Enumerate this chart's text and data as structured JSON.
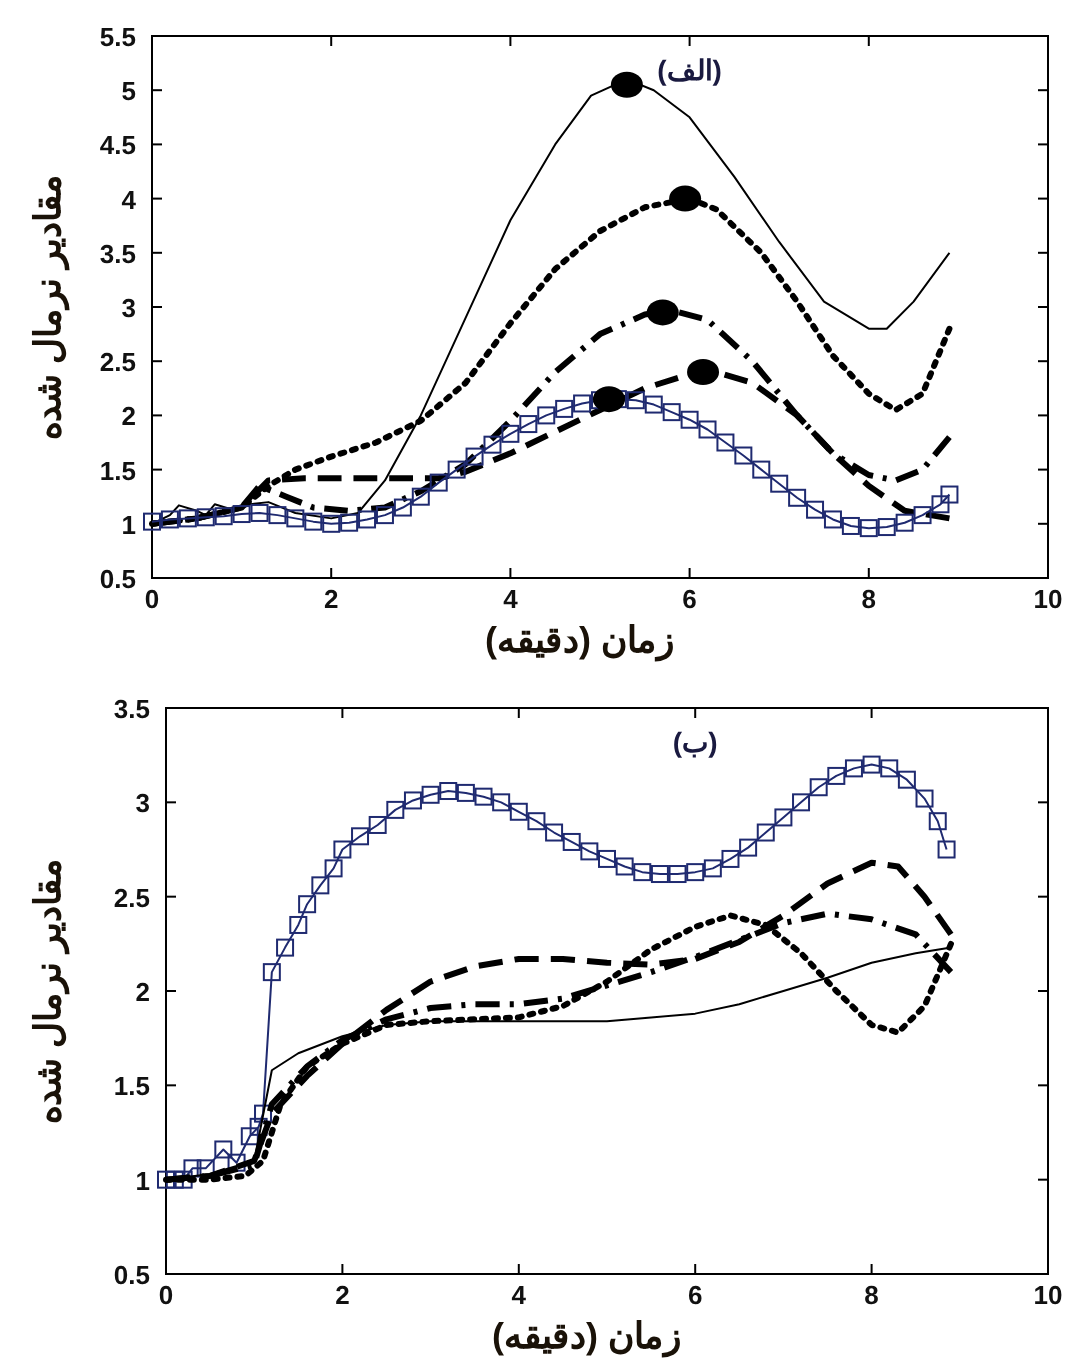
{
  "chart_data": [
    {
      "type": "line",
      "title": "(الف)",
      "xlabel": "زمان (دقیقه)",
      "ylabel": "مقادیر نرمال شده",
      "xlim": [
        0,
        10
      ],
      "ylim": [
        0.5,
        5.5
      ],
      "xticks": [
        0,
        2,
        4,
        6,
        8,
        10
      ],
      "yticks": [
        0.5,
        1,
        1.5,
        2,
        2.5,
        3,
        3.5,
        4,
        4.5,
        5,
        5.5
      ],
      "grid": false,
      "series": [
        {
          "color": "#000000",
          "line_style": "solid",
          "marker": "none",
          "x": [
            0,
            0.2,
            0.3,
            0.5,
            0.6,
            0.7,
            0.9,
            1.1,
            1.3,
            1.6,
            2.0,
            2.3,
            2.6,
            3.0,
            3.5,
            4.0,
            4.5,
            4.9,
            5.3,
            5.6,
            6.0,
            6.5,
            7.0,
            7.5,
            8.0,
            8.2,
            8.5,
            8.9
          ],
          "values": [
            1.0,
            1.08,
            1.17,
            1.12,
            1.08,
            1.18,
            1.13,
            1.18,
            1.2,
            1.1,
            1.05,
            1.1,
            1.4,
            2.0,
            2.9,
            3.8,
            4.5,
            4.95,
            5.1,
            5.0,
            4.75,
            4.2,
            3.6,
            3.05,
            2.8,
            2.8,
            3.05,
            3.5
          ]
        },
        {
          "color": "#000000",
          "line_style": "dotted",
          "marker": "none",
          "x": [
            0,
            0.5,
            1.0,
            1.3,
            1.6,
            2.0,
            2.5,
            3.0,
            3.5,
            4.0,
            4.5,
            5.0,
            5.5,
            6.0,
            6.3,
            6.8,
            7.2,
            7.6,
            8.0,
            8.3,
            8.6,
            8.9
          ],
          "values": [
            1.0,
            1.05,
            1.15,
            1.35,
            1.5,
            1.62,
            1.75,
            1.95,
            2.3,
            2.85,
            3.35,
            3.7,
            3.92,
            4.0,
            3.9,
            3.5,
            3.05,
            2.55,
            2.2,
            2.05,
            2.2,
            2.8
          ]
        },
        {
          "color": "#000000",
          "line_style": "dashdot",
          "marker": "none",
          "x": [
            0,
            0.5,
            1.0,
            1.2,
            1.5,
            1.8,
            2.2,
            2.6,
            3.0,
            3.5,
            4.0,
            4.5,
            5.0,
            5.5,
            5.8,
            6.2,
            6.7,
            7.2,
            7.6,
            8.0,
            8.3,
            8.6,
            8.9
          ],
          "values": [
            1.0,
            1.05,
            1.15,
            1.35,
            1.25,
            1.15,
            1.12,
            1.15,
            1.3,
            1.55,
            1.95,
            2.4,
            2.75,
            2.93,
            2.97,
            2.88,
            2.5,
            2.0,
            1.65,
            1.45,
            1.4,
            1.5,
            1.8
          ]
        },
        {
          "color": "#000000",
          "line_style": "dashed",
          "marker": "none",
          "x": [
            0,
            0.5,
            1.0,
            1.3,
            1.7,
            2.5,
            3.2,
            3.5,
            4.0,
            4.5,
            5.0,
            5.5,
            6.0,
            6.3,
            6.7,
            7.2,
            7.6,
            8.0,
            8.4,
            8.9
          ],
          "values": [
            1.0,
            1.05,
            1.15,
            1.4,
            1.42,
            1.42,
            1.42,
            1.48,
            1.65,
            1.85,
            2.05,
            2.25,
            2.38,
            2.4,
            2.3,
            2.0,
            1.65,
            1.35,
            1.12,
            1.05
          ]
        },
        {
          "color": "#1f2a70",
          "line_style": "solid",
          "marker": "square",
          "x": [
            0,
            0.2,
            0.4,
            0.6,
            0.8,
            1.0,
            1.2,
            1.4,
            1.6,
            1.8,
            2.0,
            2.2,
            2.4,
            2.6,
            2.8,
            3.0,
            3.2,
            3.4,
            3.6,
            3.8,
            4.0,
            4.2,
            4.4,
            4.6,
            4.8,
            5.0,
            5.2,
            5.4,
            5.6,
            5.8,
            6.0,
            6.2,
            6.4,
            6.6,
            6.8,
            7.0,
            7.2,
            7.4,
            7.6,
            7.8,
            8.0,
            8.2,
            8.4,
            8.6,
            8.8,
            8.9
          ],
          "values": [
            1.02,
            1.04,
            1.05,
            1.06,
            1.07,
            1.09,
            1.1,
            1.08,
            1.05,
            1.02,
            1.0,
            1.01,
            1.04,
            1.08,
            1.15,
            1.25,
            1.38,
            1.5,
            1.62,
            1.73,
            1.83,
            1.92,
            2.0,
            2.06,
            2.11,
            2.14,
            2.15,
            2.14,
            2.1,
            2.03,
            1.96,
            1.87,
            1.75,
            1.63,
            1.5,
            1.37,
            1.24,
            1.13,
            1.04,
            0.98,
            0.96,
            0.97,
            1.01,
            1.08,
            1.18,
            1.27
          ]
        },
        {
          "type": "scatter",
          "color": "#000000",
          "marker": "circle",
          "x": [
            5.3,
            5.95,
            5.7,
            6.15,
            5.1
          ],
          "values": [
            5.05,
            4.0,
            2.95,
            2.4,
            2.15
          ]
        }
      ]
    },
    {
      "type": "line",
      "title": "(ب)",
      "xlabel": "زمان (دقیقه)",
      "ylabel": "مقادیر نرمال شده",
      "xlim": [
        0,
        10
      ],
      "ylim": [
        0.5,
        3.5
      ],
      "xticks": [
        0,
        2,
        4,
        6,
        8,
        10
      ],
      "yticks": [
        0.5,
        1,
        1.5,
        2,
        2.5,
        3,
        3.5
      ],
      "grid": false,
      "series": [
        {
          "color": "#1f2a70",
          "line_style": "solid",
          "marker": "square",
          "x": [
            0,
            0.1,
            0.2,
            0.3,
            0.45,
            0.65,
            0.8,
            0.95,
            1.05,
            1.1,
            1.2,
            1.35,
            1.5,
            1.6,
            1.75,
            1.9,
            2.0,
            2.2,
            2.4,
            2.6,
            2.8,
            3.0,
            3.2,
            3.4,
            3.6,
            3.8,
            4.0,
            4.2,
            4.4,
            4.6,
            4.8,
            5.0,
            5.2,
            5.4,
            5.6,
            5.8,
            6.0,
            6.2,
            6.4,
            6.6,
            6.8,
            7.0,
            7.2,
            7.4,
            7.6,
            7.8,
            8.0,
            8.2,
            8.4,
            8.6,
            8.75,
            8.85
          ],
          "values": [
            1.0,
            1.0,
            1.0,
            1.06,
            1.06,
            1.16,
            1.09,
            1.23,
            1.28,
            1.35,
            2.1,
            2.23,
            2.35,
            2.46,
            2.56,
            2.65,
            2.75,
            2.82,
            2.88,
            2.96,
            3.01,
            3.04,
            3.06,
            3.05,
            3.03,
            3.0,
            2.95,
            2.9,
            2.84,
            2.79,
            2.74,
            2.7,
            2.66,
            2.63,
            2.62,
            2.62,
            2.63,
            2.65,
            2.7,
            2.76,
            2.84,
            2.92,
            3.0,
            3.08,
            3.14,
            3.18,
            3.2,
            3.18,
            3.12,
            3.02,
            2.9,
            2.75
          ]
        },
        {
          "color": "#000000",
          "line_style": "solid",
          "marker": "none",
          "x": [
            0,
            0.5,
            1.0,
            1.2,
            1.5,
            2.0,
            2.5,
            3.0,
            4.0,
            5.0,
            5.5,
            6.0,
            6.5,
            7.0,
            7.5,
            8.0,
            8.5,
            8.9
          ],
          "values": [
            1.0,
            1.03,
            1.1,
            1.58,
            1.67,
            1.76,
            1.82,
            1.84,
            1.84,
            1.84,
            1.86,
            1.88,
            1.93,
            2.0,
            2.07,
            2.15,
            2.2,
            2.23
          ]
        },
        {
          "color": "#000000",
          "line_style": "dotted",
          "marker": "none",
          "x": [
            0,
            0.5,
            0.9,
            1.1,
            1.3,
            1.6,
            2.0,
            2.5,
            3.0,
            4.0,
            4.5,
            5.0,
            5.5,
            6.0,
            6.4,
            6.8,
            7.2,
            7.6,
            8.0,
            8.3,
            8.6,
            8.9
          ],
          "values": [
            1.0,
            1.0,
            1.02,
            1.1,
            1.4,
            1.6,
            1.72,
            1.82,
            1.84,
            1.86,
            1.92,
            2.05,
            2.22,
            2.34,
            2.4,
            2.35,
            2.2,
            2.0,
            1.82,
            1.78,
            1.92,
            2.25
          ]
        },
        {
          "color": "#000000",
          "line_style": "dashdot",
          "marker": "none",
          "x": [
            0,
            0.5,
            1.0,
            1.2,
            1.6,
            2.0,
            2.5,
            3.0,
            3.5,
            4.0,
            4.5,
            5.0,
            5.5,
            6.0,
            6.5,
            7.0,
            7.5,
            8.0,
            8.5,
            8.9
          ],
          "values": [
            1.0,
            1.02,
            1.08,
            1.4,
            1.6,
            1.74,
            1.85,
            1.91,
            1.93,
            1.93,
            1.96,
            2.03,
            2.1,
            2.18,
            2.27,
            2.36,
            2.41,
            2.38,
            2.3,
            2.1
          ]
        },
        {
          "color": "#000000",
          "line_style": "dashed",
          "marker": "none",
          "x": [
            0,
            0.5,
            1.0,
            1.2,
            1.6,
            2.0,
            2.5,
            3.0,
            3.5,
            4.0,
            4.5,
            5.0,
            5.5,
            6.0,
            6.5,
            7.0,
            7.5,
            8.0,
            8.3,
            8.6,
            8.9
          ],
          "values": [
            1.0,
            1.02,
            1.1,
            1.35,
            1.55,
            1.72,
            1.9,
            2.05,
            2.13,
            2.17,
            2.17,
            2.15,
            2.14,
            2.17,
            2.26,
            2.4,
            2.57,
            2.68,
            2.66,
            2.5,
            2.3
          ]
        }
      ]
    }
  ]
}
